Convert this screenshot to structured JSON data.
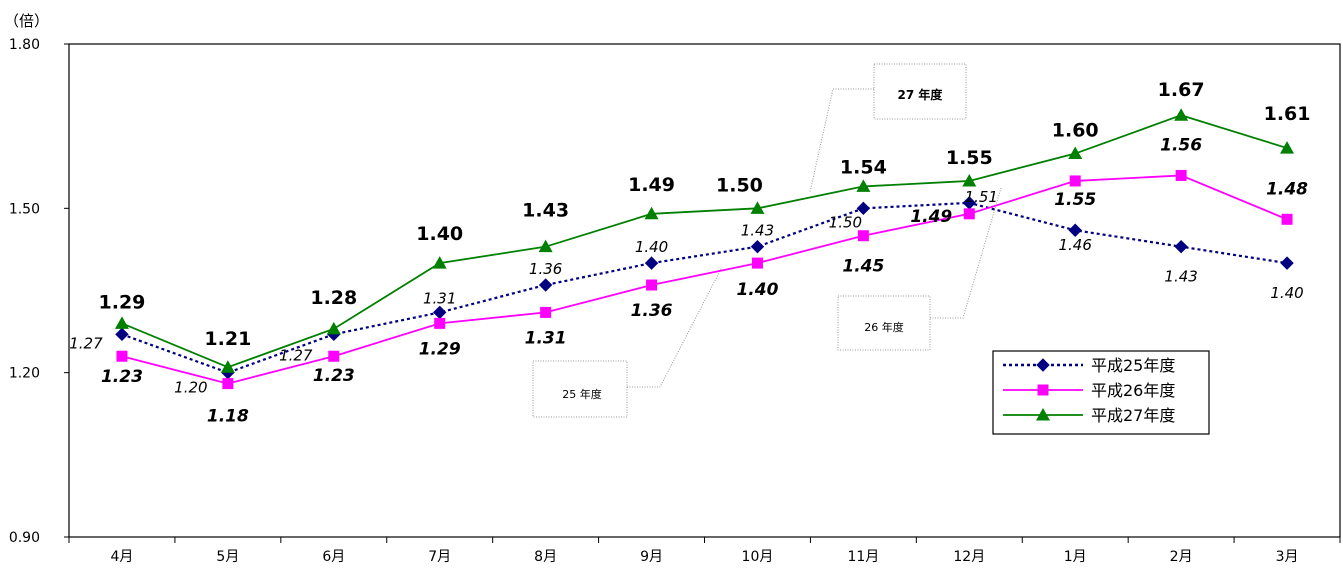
{
  "chart_data": {
    "type": "line",
    "unit_label": "（倍）",
    "categories": [
      "4月",
      "5月",
      "6月",
      "7月",
      "8月",
      "9月",
      "10月",
      "11月",
      "12月",
      "1月",
      "2月",
      "3月"
    ],
    "ylim": [
      0.9,
      1.8
    ],
    "yticks": [
      "0.90",
      "1.20",
      "1.50",
      "1.80"
    ],
    "legend_position": "right",
    "series": [
      {
        "name": "平成25年度",
        "values": [
          1.27,
          1.2,
          1.27,
          1.31,
          1.36,
          1.4,
          1.43,
          1.5,
          1.51,
          1.46,
          1.43,
          1.4
        ],
        "labels": [
          "1.27",
          "1.20",
          "1.27",
          "1.31",
          "1.36",
          "1.40",
          "1.43",
          "1.50",
          "1.51",
          "1.46",
          "1.43",
          "1.40"
        ],
        "color": "#000080",
        "marker": "diamond",
        "dash": true
      },
      {
        "name": "平成26年度",
        "values": [
          1.23,
          1.18,
          1.23,
          1.29,
          1.31,
          1.36,
          1.4,
          1.45,
          1.49,
          1.55,
          1.56,
          1.48
        ],
        "labels": [
          "1.23",
          "1.18",
          "1.23",
          "1.29",
          "1.31",
          "1.36",
          "1.40",
          "1.45",
          "1.49",
          "1.55",
          "1.56",
          "1.48"
        ],
        "color": "#ff00ff",
        "marker": "square",
        "dash": false
      },
      {
        "name": "平成27年度",
        "values": [
          1.29,
          1.21,
          1.28,
          1.4,
          1.43,
          1.49,
          1.5,
          1.54,
          1.55,
          1.6,
          1.67,
          1.61
        ],
        "labels": [
          "1.29",
          "1.21",
          "1.28",
          "1.40",
          "1.43",
          "1.49",
          "1.50",
          "1.54",
          "1.55",
          "1.60",
          "1.67",
          "1.61"
        ],
        "color": "#008000",
        "marker": "triangle",
        "dash": false
      }
    ],
    "annotations": [
      "25 年度",
      "26 年度",
      "27 年度"
    ]
  }
}
